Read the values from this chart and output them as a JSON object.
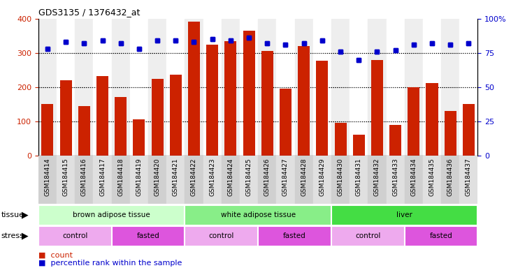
{
  "title": "GDS3135 / 1376432_at",
  "samples": [
    "GSM184414",
    "GSM184415",
    "GSM184416",
    "GSM184417",
    "GSM184418",
    "GSM184419",
    "GSM184420",
    "GSM184421",
    "GSM184422",
    "GSM184423",
    "GSM184424",
    "GSM184425",
    "GSM184426",
    "GSM184427",
    "GSM184428",
    "GSM184429",
    "GSM184430",
    "GSM184431",
    "GSM184432",
    "GSM184433",
    "GSM184434",
    "GSM184435",
    "GSM184436",
    "GSM184437"
  ],
  "counts": [
    150,
    220,
    145,
    232,
    172,
    105,
    225,
    237,
    392,
    325,
    335,
    365,
    305,
    195,
    320,
    278,
    95,
    60,
    280,
    90,
    200,
    212,
    130,
    150
  ],
  "percentiles": [
    78,
    83,
    82,
    84,
    82,
    78,
    84,
    84,
    83,
    85,
    84,
    86,
    82,
    81,
    82,
    84,
    76,
    70,
    76,
    77,
    81,
    82,
    81,
    82
  ],
  "bar_color": "#cc2200",
  "dot_color": "#0000cc",
  "ylim_left": [
    0,
    400
  ],
  "ylim_right": [
    0,
    100
  ],
  "yticks_left": [
    0,
    100,
    200,
    300,
    400
  ],
  "yticks_right": [
    0,
    25,
    50,
    75,
    100
  ],
  "ytick_labels_right": [
    "0",
    "25",
    "50",
    "75",
    "100%"
  ],
  "grid_values": [
    100,
    200,
    300
  ],
  "tissue_groups": [
    {
      "label": "brown adipose tissue",
      "start": 0,
      "end": 8,
      "color": "#ccffcc"
    },
    {
      "label": "white adipose tissue",
      "start": 8,
      "end": 16,
      "color": "#88ee88"
    },
    {
      "label": "liver",
      "start": 16,
      "end": 24,
      "color": "#44dd44"
    }
  ],
  "stress_groups": [
    {
      "label": "control",
      "start": 0,
      "end": 4,
      "color": "#eeaaee"
    },
    {
      "label": "fasted",
      "start": 4,
      "end": 8,
      "color": "#dd55dd"
    },
    {
      "label": "control",
      "start": 8,
      "end": 12,
      "color": "#eeaaee"
    },
    {
      "label": "fasted",
      "start": 12,
      "end": 16,
      "color": "#dd55dd"
    },
    {
      "label": "control",
      "start": 16,
      "end": 20,
      "color": "#eeaaee"
    },
    {
      "label": "fasted",
      "start": 20,
      "end": 24,
      "color": "#dd55dd"
    }
  ],
  "tissue_label": "tissue",
  "stress_label": "stress",
  "legend_count_label": "count",
  "legend_pct_label": "percentile rank within the sample",
  "bar_width": 0.65,
  "tick_fontsize": 6.5,
  "label_fontsize": 8,
  "xtick_bg_color": "#d8d8d8",
  "chart_bg_color": "#ffffff"
}
